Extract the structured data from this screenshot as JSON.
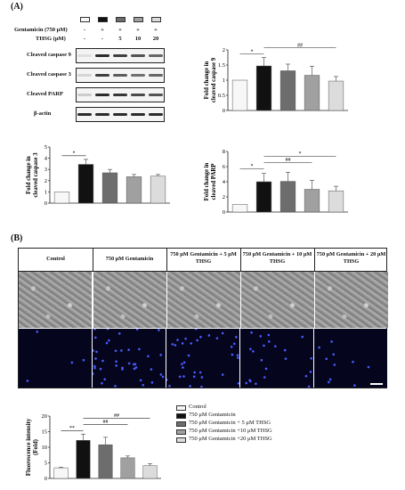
{
  "panel_a": {
    "label": "(A)",
    "treatment_rows": [
      {
        "label": "Gentamicin (750 μM)",
        "values": [
          "-",
          "+",
          "+",
          "+",
          "+"
        ]
      },
      {
        "label": "THSG (μM)",
        "values": [
          "-",
          "-",
          "5",
          "10",
          "20"
        ]
      }
    ],
    "blot_labels": [
      "Cleaved caspase 9",
      "Cleaved caspase 3",
      "Cleaved PARP",
      "β-actin"
    ],
    "bar_colors": [
      "#f7f7f7",
      "#111111",
      "#6d6d6d",
      "#a0a0a0",
      "#dcdcdc"
    ]
  },
  "chart_data": [
    {
      "type": "bar",
      "categories": [
        "Control",
        "750 μM Gentamicin",
        "750 μM Gentamicin + 5 μM THSG",
        "750 μM Gentamicin + 10 μM THSG",
        "750 μM Gentamicin + 20 μM THSG"
      ],
      "values": [
        1.0,
        1.47,
        1.31,
        1.16,
        0.97
      ],
      "errors": [
        0.0,
        0.28,
        0.22,
        0.3,
        0.15
      ],
      "ylabel": "Fold change in cleaved caspase 9",
      "ylim": [
        0,
        2
      ],
      "yticks": [
        "0",
        "0.5",
        "1",
        "1.5",
        "2"
      ],
      "significance": [
        {
          "label": "*",
          "from": 0,
          "to": 1
        },
        {
          "label": "##",
          "from": 1,
          "to": 4
        }
      ]
    },
    {
      "type": "bar",
      "categories": [
        "Control",
        "750 μM Gentamicin",
        "750 μM Gentamicin + 5 μM THSG",
        "750 μM Gentamicin + 10 μM THSG",
        "750 μM Gentamicin + 20 μM THSG"
      ],
      "values": [
        1.0,
        3.45,
        2.7,
        2.35,
        2.4
      ],
      "errors": [
        0.0,
        0.45,
        0.3,
        0.2,
        0.15
      ],
      "ylabel": "Fold change in cleaved caspase 3",
      "ylim": [
        0,
        5
      ],
      "yticks": [
        "0",
        "1",
        "2",
        "3",
        "4",
        "5"
      ],
      "significance": [
        {
          "label": "*",
          "from": 0,
          "to": 1
        }
      ]
    },
    {
      "type": "bar",
      "categories": [
        "Control",
        "750 μM Gentamicin",
        "750 μM Gentamicin + 5 μM THSG",
        "750 μM Gentamicin + 10 μM THSG",
        "750 μM Gentamicin + 20 μM THSG"
      ],
      "values": [
        1.0,
        4.0,
        4.05,
        3.0,
        2.8
      ],
      "errors": [
        0.0,
        1.1,
        1.2,
        1.2,
        0.6
      ],
      "ylabel": "Fold change in cleaved PARP",
      "ylim": [
        0,
        8
      ],
      "yticks": [
        "0",
        "2",
        "4",
        "6",
        "8"
      ],
      "significance": [
        {
          "label": "*",
          "from": 0,
          "to": 1
        },
        {
          "label": "##",
          "from": 1,
          "to": 3
        },
        {
          "label": "*",
          "from": 1,
          "to": 4
        }
      ]
    },
    {
      "type": "bar",
      "categories": [
        "Control",
        "750 μM Gentamicin",
        "750 μM Gentamicin + 5 μM THSG",
        "750 μM Gentamicin +10 μM THSG",
        "750 μM Gentamicin +20 μM THSG"
      ],
      "values": [
        3.4,
        12.2,
        10.8,
        6.6,
        4.1
      ],
      "errors": [
        0.2,
        2.0,
        2.4,
        0.6,
        0.6
      ],
      "ylabel": "Fluorescence intensity (Fold)",
      "ylim": [
        0,
        20
      ],
      "yticks": [
        "0",
        "5",
        "10",
        "15",
        "20"
      ],
      "significance": [
        {
          "label": "**",
          "from": 0,
          "to": 1
        },
        {
          "label": "##",
          "from": 1,
          "to": 3
        },
        {
          "label": "##",
          "from": 1,
          "to": 4
        }
      ]
    }
  ],
  "panel_b": {
    "label": "(B)",
    "column_headers": [
      "Control",
      "750 μM Gentamicin",
      "750 μM Gentamicin + 5 μM THSG",
      "750 μM Gentamicin + 10 μM THSG",
      "750 μM Gentamicin + 20 μM THSG"
    ],
    "legend": [
      "Control",
      "750 μM Gentamicin",
      "750 μM Gentamicin + 5 μM THSG",
      "750 μM Gentamicin +10 μM THSG",
      "750 μM Gentamicin +20 μM THSG"
    ]
  }
}
